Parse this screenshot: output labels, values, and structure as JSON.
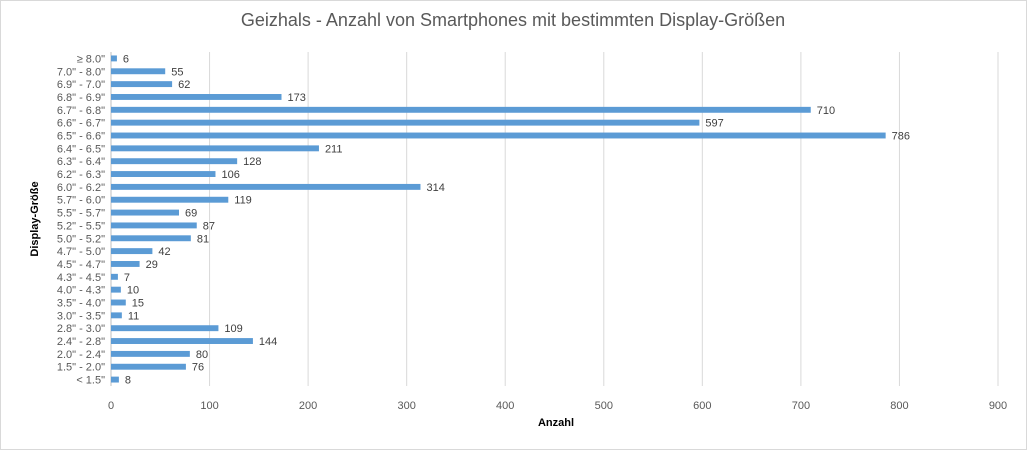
{
  "chart_data": {
    "type": "bar",
    "orientation": "horizontal",
    "title": "Geizhals - Anzahl von Smartphones mit bestimmten Display-Größen",
    "xlabel": "Anzahl",
    "ylabel": "Display-Größe",
    "xlim": [
      0,
      900
    ],
    "xticks": [
      "0",
      "100",
      "200",
      "300",
      "400",
      "500",
      "600",
      "700",
      "800",
      "900"
    ],
    "grid": true,
    "bar_color": "#5b9bd5",
    "categories": [
      "< 1.5\"",
      "1.5\" - 2.0\"",
      "2.0\" - 2.4\"",
      "2.4\" - 2.8\"",
      "2.8\" - 3.0\"",
      "3.0\" - 3.5\"",
      "3.5\" - 4.0\"",
      "4.0\" - 4.3\"",
      "4.3\" - 4.5\"",
      "4.5\" - 4.7\"",
      "4.7\" - 5.0\"",
      "5.0\" - 5.2\"",
      "5.2\" - 5.5\"",
      "5.5\" - 5.7\"",
      "5.7\" - 6.0\"",
      "6.0\" - 6.2\"",
      "6.2\" - 6.3\"",
      "6.3\" - 6.4\"",
      "6.4\" - 6.5\"",
      "6.5\" - 6.6\"",
      "6.6\" - 6.7\"",
      "6.7\" - 6.8\"",
      "6.8\" - 6.9\"",
      "6.9\" - 7.0\"",
      "7.0\" - 8.0\"",
      "≥ 8.0\""
    ],
    "values": [
      8,
      76,
      80,
      144,
      109,
      11,
      15,
      10,
      7,
      29,
      42,
      81,
      87,
      69,
      119,
      314,
      106,
      128,
      211,
      786,
      597,
      710,
      173,
      62,
      55,
      6
    ]
  }
}
